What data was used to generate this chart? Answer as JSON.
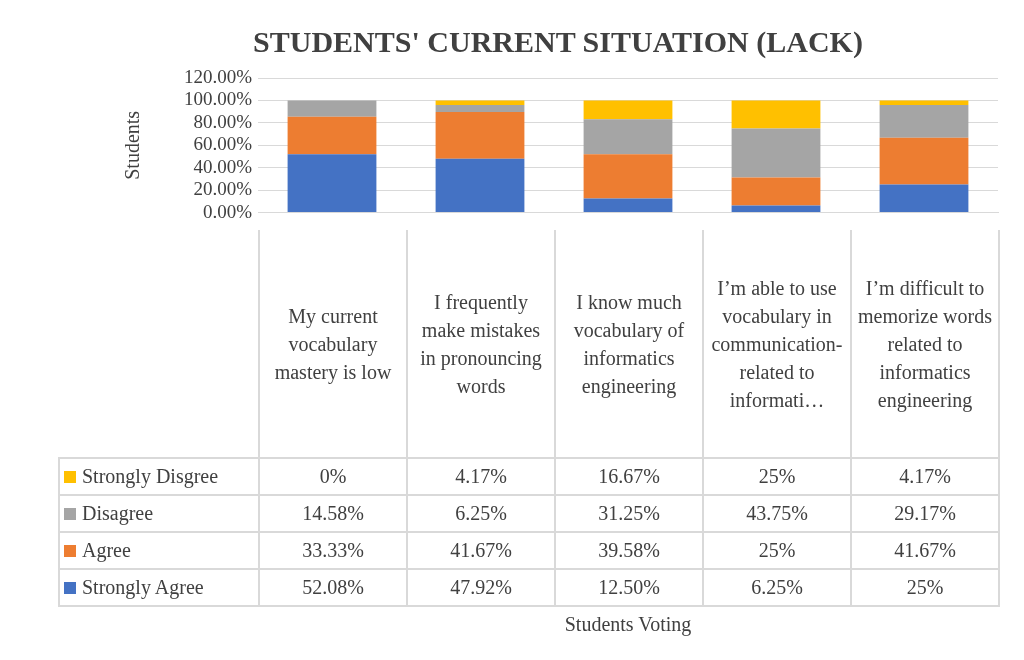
{
  "chart_data": {
    "type": "bar",
    "title": "STUDENTS' CURRENT SITUATION (LACK)",
    "annotations": [
      "Students Voting"
    ],
    "ylabel": "Students",
    "categories": [
      "My current vocabulary mastery is low",
      "I frequently make mistakes in pronouncing words",
      "I know much vocabulary of informatics engineering",
      "I’m able to use vocabulary in communication-related to informati…",
      "I’m difficult to memorize words related to informatics engineering"
    ],
    "stacked": true,
    "grid": "y",
    "legend": "bottom",
    "ylim": [
      0,
      120
    ],
    "yticks": [
      {
        "value": 0,
        "label": "0.00%"
      },
      {
        "value": 20,
        "label": "20.00%"
      },
      {
        "value": 40,
        "label": "40.00%"
      },
      {
        "value": 60,
        "label": "60.00%"
      },
      {
        "value": 80,
        "label": "80.00%"
      },
      {
        "value": 100,
        "label": "100.00%"
      },
      {
        "value": 120,
        "label": "120.00%"
      }
    ],
    "series": [
      {
        "name": "Strongly Agree",
        "color": "#4472c4",
        "values": [
          52.08,
          47.92,
          12.5,
          6.25,
          25
        ],
        "value_labels": [
          "52.08%",
          "47.92%",
          "12.50%",
          "6.25%",
          "25%"
        ]
      },
      {
        "name": "Agree",
        "color": "#ed7d31",
        "values": [
          33.33,
          41.67,
          39.58,
          25,
          41.67
        ],
        "value_labels": [
          "33.33%",
          "41.67%",
          "39.58%",
          "25%",
          "41.67%"
        ]
      },
      {
        "name": "Disagree",
        "color": "#a5a5a5",
        "values": [
          14.58,
          6.25,
          31.25,
          43.75,
          29.17
        ],
        "value_labels": [
          "14.58%",
          "6.25%",
          "31.25%",
          "43.75%",
          "29.17%"
        ]
      },
      {
        "name": "Strongly Disgree",
        "color": "#ffc000",
        "values": [
          0,
          4.17,
          16.67,
          25,
          4.17
        ],
        "value_labels": [
          "0%",
          "4.17%",
          "16.67%",
          "25%",
          "4.17%"
        ]
      }
    ]
  }
}
